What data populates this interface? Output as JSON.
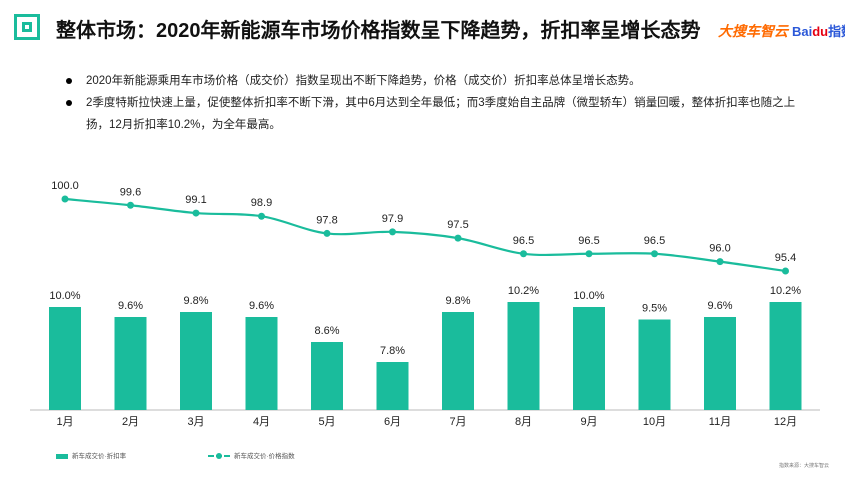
{
  "header": {
    "title": "整体市场：2020年新能源车市场价格指数呈下降趋势，折扣率呈增长态势",
    "brand_left": "大搜车智云",
    "brand_right_prefix": "Bai",
    "brand_right_paw": "du",
    "brand_right_suffix": "指数"
  },
  "bullets": [
    "2020年新能源乘用车市场价格（成交价）指数呈现出不断下降趋势，价格（成交价）折扣率总体呈增长态势。",
    "2季度特斯拉快速上量，促使整体折扣率不断下滑，其中6月达到全年最低；而3季度始自主品牌（微型轿车）销量回暖，整体折扣率也随之上扬，12月折扣率10.2%，为全年最高。"
  ],
  "legend": {
    "bar_label": "新车成交价·折扣率",
    "line_label": "新车成交价·价格指数"
  },
  "source": "指数来源：大搜车智云",
  "colors": {
    "accent": "#1abc9c",
    "text": "#222222"
  },
  "chart_data": {
    "type": "bar",
    "categories": [
      "1月",
      "2月",
      "3月",
      "4月",
      "5月",
      "6月",
      "7月",
      "8月",
      "9月",
      "10月",
      "11月",
      "12月"
    ],
    "series": [
      {
        "name": "新车成交价·折扣率",
        "type": "bar",
        "values": [
          10.0,
          9.6,
          9.8,
          9.6,
          8.6,
          7.8,
          9.8,
          10.2,
          10.0,
          9.5,
          9.6,
          10.2
        ],
        "labels": [
          "10.0%",
          "9.6%",
          "9.8%",
          "9.6%",
          "8.6%",
          "7.8%",
          "9.8%",
          "10.2%",
          "10.0%",
          "9.5%",
          "9.6%",
          "10.2%"
        ]
      },
      {
        "name": "新车成交价·价格指数",
        "type": "line",
        "values": [
          100.0,
          99.6,
          99.1,
          98.9,
          97.8,
          97.9,
          97.5,
          96.5,
          96.5,
          96.5,
          96.0,
          95.4
        ],
        "labels": [
          "100.0",
          "99.6",
          "99.1",
          "98.9",
          "97.8",
          "97.9",
          "97.5",
          "96.5",
          "96.5",
          "96.5",
          "96.0",
          "95.4"
        ]
      }
    ],
    "bar_ylim": [
      7.0,
      10.2
    ],
    "line_ylim": [
      95.4,
      100.0
    ],
    "grid": false,
    "legend_position": "bottom-left"
  }
}
